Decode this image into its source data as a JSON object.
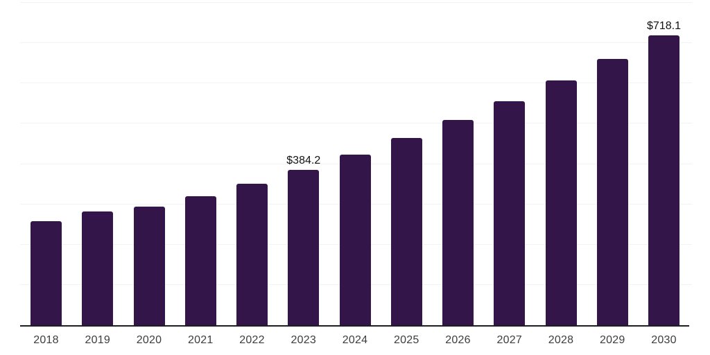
{
  "chart_data": {
    "type": "bar",
    "categories": [
      "2018",
      "2019",
      "2020",
      "2021",
      "2022",
      "2023",
      "2024",
      "2025",
      "2026",
      "2027",
      "2028",
      "2029",
      "2030"
    ],
    "values": [
      258,
      281,
      293,
      319,
      350,
      384.2,
      423,
      463,
      509,
      555,
      606,
      660,
      718.1
    ],
    "data_labels": [
      "",
      "",
      "",
      "",
      "",
      "$384.2",
      "",
      "",
      "",
      "",
      "",
      "",
      "$718.1"
    ],
    "title": "",
    "xlabel": "",
    "ylabel": "",
    "ylim": [
      0,
      800
    ],
    "grid": true,
    "gridline_step": 100,
    "legend": "none",
    "colors": {
      "bar": "#331549",
      "axis_line": "#1d1d26",
      "gridline": "#f3f2f5",
      "tick_label": "#3d3d3d",
      "data_label": "#111111",
      "background": "#ffffff"
    }
  }
}
